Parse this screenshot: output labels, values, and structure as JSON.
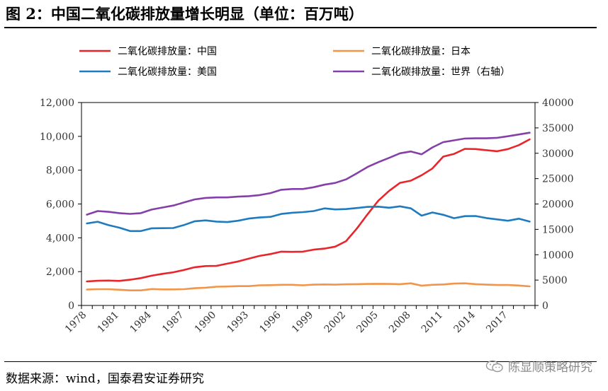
{
  "title": "图 2：中国二氧化碳排放量增长明显（单位：百万吨）",
  "source": "数据来源：wind，国泰君安证券研究",
  "watermark": "陈显顺策略研究",
  "chart_data": {
    "type": "line",
    "legend_position": "top",
    "grid": false,
    "x": [
      1978,
      1979,
      1980,
      1981,
      1982,
      1983,
      1984,
      1985,
      1986,
      1987,
      1988,
      1989,
      1990,
      1991,
      1992,
      1993,
      1994,
      1995,
      1996,
      1997,
      1998,
      1999,
      2000,
      2001,
      2002,
      2003,
      2004,
      2005,
      2006,
      2007,
      2008,
      2009,
      2010,
      2011,
      2012,
      2013,
      2014,
      2015,
      2016,
      2017,
      2018,
      2019
    ],
    "x_tick_labels": [
      "1978",
      "1981",
      "1984",
      "1987",
      "1990",
      "1993",
      "1996",
      "1999",
      "2002",
      "2005",
      "2008",
      "2011",
      "2014",
      "2017"
    ],
    "y_left": {
      "min": 0,
      "max": 12000,
      "ticks": [
        "0",
        "2,000",
        "4,000",
        "6,000",
        "8,000",
        "10,000",
        "12,000"
      ]
    },
    "y_right": {
      "min": 0,
      "max": 40000,
      "ticks": [
        "0",
        "5000",
        "10000",
        "15000",
        "20000",
        "25000",
        "30000",
        "35000",
        "40000"
      ]
    },
    "series": [
      {
        "name": "二氧化碳排放量：中国",
        "axis": "left",
        "color": "#e8252a",
        "values": [
          1420,
          1460,
          1470,
          1450,
          1520,
          1620,
          1760,
          1870,
          1960,
          2100,
          2260,
          2330,
          2340,
          2470,
          2600,
          2770,
          2930,
          3040,
          3180,
          3170,
          3180,
          3300,
          3360,
          3480,
          3800,
          4550,
          5400,
          6200,
          6780,
          7250,
          7380,
          7700,
          8100,
          8800,
          8960,
          9260,
          9250,
          9180,
          9120,
          9250,
          9480,
          9820
        ]
      },
      {
        "name": "二氧化碳排放量：日本",
        "axis": "left",
        "color": "#f0954a",
        "values": [
          940,
          960,
          960,
          930,
          890,
          890,
          970,
          950,
          950,
          960,
          1020,
          1050,
          1110,
          1120,
          1140,
          1140,
          1190,
          1200,
          1220,
          1220,
          1190,
          1230,
          1240,
          1230,
          1250,
          1260,
          1270,
          1280,
          1270,
          1260,
          1310,
          1170,
          1220,
          1240,
          1290,
          1310,
          1260,
          1230,
          1210,
          1210,
          1180,
          1130
        ]
      },
      {
        "name": "二氧化碳排放量：美国",
        "axis": "left",
        "color": "#1f7bbf",
        "values": [
          4850,
          4950,
          4750,
          4600,
          4400,
          4400,
          4560,
          4570,
          4580,
          4760,
          4980,
          5030,
          4960,
          4930,
          5010,
          5140,
          5200,
          5240,
          5410,
          5480,
          5520,
          5580,
          5740,
          5680,
          5700,
          5760,
          5830,
          5840,
          5780,
          5860,
          5740,
          5310,
          5500,
          5360,
          5160,
          5280,
          5290,
          5170,
          5090,
          5010,
          5130,
          4960
        ]
      },
      {
        "name": "二氧化碳排放量：世界（右轴）",
        "axis": "right",
        "color": "#8440a8",
        "values": [
          17900,
          18600,
          18450,
          18200,
          18050,
          18200,
          18900,
          19300,
          19700,
          20300,
          20900,
          21200,
          21300,
          21300,
          21450,
          21550,
          21750,
          22150,
          22800,
          22950,
          22950,
          23300,
          23800,
          24150,
          24850,
          26050,
          27300,
          28250,
          29100,
          30000,
          30350,
          29800,
          31150,
          32200,
          32550,
          32900,
          32950,
          32950,
          33050,
          33350,
          33700,
          34050
        ]
      }
    ]
  }
}
